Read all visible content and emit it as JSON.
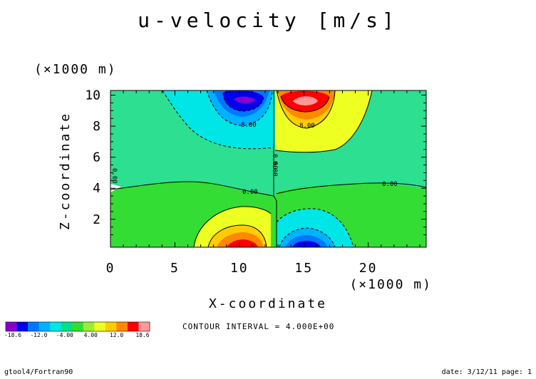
{
  "chart_data": {
    "type": "contour",
    "title": "u-velocity [m/s]",
    "xlabel": "X-coordinate",
    "ylabel": "Z-coordinate",
    "x_unit": "(×1000 m)",
    "y_unit": "(×1000 m)",
    "xlim": [
      0,
      24.5
    ],
    "ylim": [
      0.2,
      10.3
    ],
    "x_ticks": [
      "0",
      "5",
      "10",
      "15",
      "20"
    ],
    "x_tick_values": [
      0,
      5,
      10,
      15,
      20
    ],
    "y_ticks": [
      "2",
      "4",
      "6",
      "8",
      "10"
    ],
    "y_tick_values": [
      2,
      4,
      6,
      8,
      10
    ],
    "contour_interval_text": "CONTOUR INTERVAL = 4.000E+00",
    "contour_labels": [
      "0.00",
      "0.00",
      "0.00",
      "0.00",
      "0.00",
      "8.00",
      "8.00"
    ],
    "colorbar": {
      "colors": [
        "#8800cc",
        "#0000ee",
        "#0077ff",
        "#00b2ff",
        "#00e5e5",
        "#00e08c",
        "#33dd33",
        "#99ee33",
        "#eeff22",
        "#ffcc00",
        "#ff8800",
        "#ff0000",
        "#ff9999"
      ],
      "tick_labels": [
        "-18.6",
        "-12.0",
        "-4.00",
        "4.00",
        "12.0",
        "18.6"
      ]
    },
    "grid": false
  },
  "footer": {
    "left": "gtool4/Fortran90",
    "right": "date: 3/12/11 page: 1"
  }
}
